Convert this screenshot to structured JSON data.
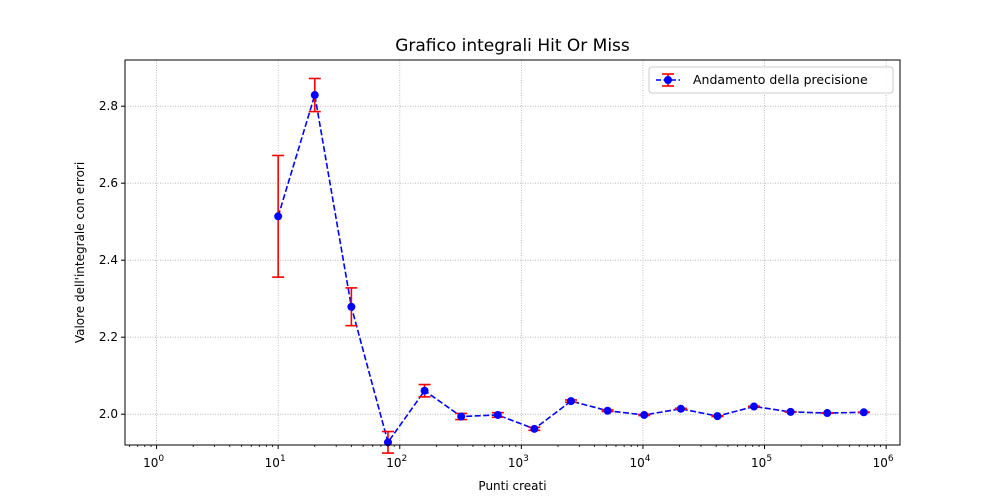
{
  "chart_data": {
    "type": "line",
    "title": "Grafico integrali Hit Or Miss",
    "xlabel": "Punti creati",
    "ylabel": "Valore dell'integrale con errori",
    "xscale": "log",
    "xlim": [
      0.55,
      1300000
    ],
    "ylim": [
      1.92,
      2.92
    ],
    "x_ticks": [
      {
        "value": 1,
        "base": "10",
        "exp": "0"
      },
      {
        "value": 10,
        "base": "10",
        "exp": "1"
      },
      {
        "value": 100,
        "base": "10",
        "exp": "2"
      },
      {
        "value": 1000,
        "base": "10",
        "exp": "3"
      },
      {
        "value": 10000,
        "base": "10",
        "exp": "4"
      },
      {
        "value": 100000,
        "base": "10",
        "exp": "5"
      },
      {
        "value": 1000000,
        "base": "10",
        "exp": "6"
      }
    ],
    "y_ticks": [
      {
        "value": 2.0,
        "label": "2.0"
      },
      {
        "value": 2.2,
        "label": "2.2"
      },
      {
        "value": 2.4,
        "label": "2.4"
      },
      {
        "value": 2.6,
        "label": "2.6"
      },
      {
        "value": 2.8,
        "label": "2.8"
      }
    ],
    "grid": true,
    "legend_position": "top-right",
    "series": [
      {
        "name": "Andamento della precisione",
        "line_color": "#0000ff",
        "marker_color": "#0000ff",
        "error_color": "#ff0000",
        "line_style": "dashed",
        "x": [
          10,
          20,
          40,
          80,
          160,
          320,
          640,
          1280,
          2560,
          5120,
          10240,
          20480,
          40960,
          81920,
          163840,
          327680,
          655360
        ],
        "y": [
          2.514,
          2.829,
          2.279,
          1.927,
          2.061,
          1.994,
          1.998,
          1.962,
          2.034,
          2.009,
          1.998,
          2.014,
          1.995,
          2.02,
          2.006,
          2.003,
          2.005
        ],
        "err": [
          0.158,
          0.043,
          0.049,
          0.028,
          0.016,
          0.008,
          0.006,
          0.004,
          0.003,
          0.002,
          0.0015,
          0.0012,
          0.001,
          0.0008,
          0.0006,
          0.0005,
          0.0004
        ]
      }
    ]
  }
}
